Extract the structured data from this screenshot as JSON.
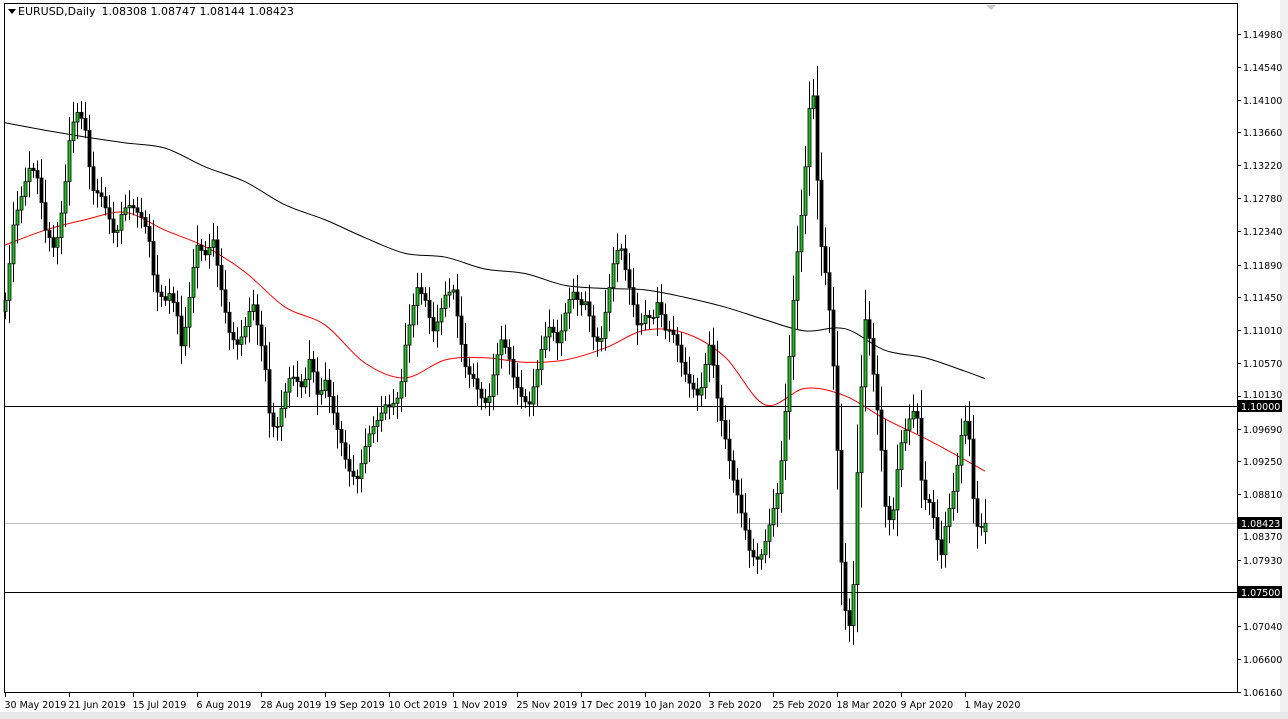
{
  "header": {
    "symbol": "EURUSD,Daily",
    "ohlc": "1.08308 1.08747 1.08144 1.08423"
  },
  "colors": {
    "bull_body": "#22c022",
    "bear_body": "#000000",
    "ma_fast": "#ff0000",
    "ma_slow": "#000000",
    "level_line": "#000000",
    "bid_line": "#c0c0c0",
    "label_bg": "#000000",
    "label_text": "#ffffff"
  },
  "chart_data": {
    "type": "candlestick",
    "symbol": "EURUSD",
    "timeframe": "Daily",
    "last_bar": {
      "open": 1.08308,
      "high": 1.08747,
      "low": 1.08144,
      "close": 1.08423
    },
    "ylim": [
      1.0616,
      1.1498
    ],
    "y_ticks": [
      "1.14980",
      "1.14540",
      "1.14100",
      "1.13660",
      "1.13220",
      "1.12780",
      "1.12340",
      "1.11890",
      "1.11450",
      "1.11010",
      "1.10570",
      "1.10130",
      "1.09690",
      "1.09250",
      "1.08810",
      "1.08370",
      "1.07930",
      "1.07040",
      "1.06600",
      "1.06160"
    ],
    "x_ticks": [
      "30 May 2019",
      "21 Jun 2019",
      "15 Jul 2019",
      "6 Aug 2019",
      "28 Aug 2019",
      "19 Sep 2019",
      "10 Oct 2019",
      "1 Nov 2019",
      "25 Nov 2019",
      "17 Dec 2019",
      "10 Jan 2020",
      "3 Feb 2020",
      "25 Feb 2020",
      "18 Mar 2020",
      "9 Apr 2020",
      "1 May 2020"
    ],
    "close": [
      1.1141,
      1.119,
      1.1242,
      1.1262,
      1.128,
      1.13,
      1.1318,
      1.1315,
      1.1305,
      1.1272,
      1.1235,
      1.1225,
      1.1212,
      1.1225,
      1.1258,
      1.13,
      1.1355,
      1.138,
      1.1393,
      1.1385,
      1.1369,
      1.132,
      1.1288,
      1.1285,
      1.128,
      1.1265,
      1.125,
      1.1232,
      1.1235,
      1.1256,
      1.1265,
      1.1268,
      1.1265,
      1.1259,
      1.1252,
      1.124,
      1.122,
      1.1175,
      1.1152,
      1.1146,
      1.1141,
      1.115,
      1.1138,
      1.112,
      1.108,
      1.1105,
      1.1145,
      1.1185,
      1.1215,
      1.1208,
      1.1202,
      1.1212,
      1.1222,
      1.1188,
      1.1155,
      1.1125,
      1.1098,
      1.1088,
      1.1082,
      1.1092,
      1.1106,
      1.1126,
      1.1135,
      1.1108,
      1.108,
      1.1048,
      1.099,
      1.0972,
      1.0972,
      1.0996,
      1.1018,
      1.1036,
      1.1038,
      1.1032,
      1.1025,
      1.1035,
      1.1062,
      1.1045,
      1.1015,
      1.102,
      1.1034,
      1.1012,
      1.099,
      1.0968,
      1.095,
      1.0928,
      1.0912,
      1.0905,
      1.0902,
      1.0922,
      1.0945,
      1.0962,
      1.0972,
      1.098,
      1.099,
      1.1001,
      1.0998,
      1.1003,
      1.101,
      1.1032,
      1.1081,
      1.1108,
      1.1134,
      1.1158,
      1.115,
      1.1141,
      1.1118,
      1.11,
      1.1112,
      1.113,
      1.1148,
      1.1152,
      1.1155,
      1.112,
      1.1082,
      1.1052,
      1.1042,
      1.1036,
      1.1022,
      1.101,
      1.1004,
      1.1012,
      1.1041,
      1.1068,
      1.1088,
      1.1078,
      1.1062,
      1.1038,
      1.1024,
      1.1012,
      1.1005,
      1.1002,
      1.1025,
      1.1048,
      1.1075,
      1.1092,
      1.1105,
      1.1098,
      1.1084,
      1.11,
      1.1124,
      1.1142,
      1.1152,
      1.1142,
      1.1135,
      1.1139,
      1.112,
      1.1092,
      1.1086,
      1.109,
      1.1125,
      1.1158,
      1.119,
      1.1208,
      1.121,
      1.1182,
      1.1158,
      1.1135,
      1.1108,
      1.111,
      1.1121,
      1.1118,
      1.1118,
      1.1138,
      1.1122,
      1.1101,
      1.1101,
      1.1095,
      1.1081,
      1.1058,
      1.1042,
      1.103,
      1.1022,
      1.1014,
      1.1024,
      1.1055,
      1.1081,
      1.1054,
      1.101,
      1.098,
      1.0955,
      1.0926,
      1.09,
      1.088,
      1.0856,
      1.0833,
      1.0806,
      1.0797,
      1.0794,
      1.08,
      1.0818,
      1.084,
      1.0862,
      1.0882,
      1.0926,
      1.0992,
      1.1066,
      1.1141,
      1.1206,
      1.1255,
      1.132,
      1.1398,
      1.1415,
      1.1302,
      1.1213,
      1.1178,
      1.1128,
      1.1053,
      1.094,
      1.079,
      1.0725,
      1.0705,
      1.076,
      1.091,
      1.1025,
      1.1115,
      1.109,
      1.1042,
      1.0994,
      1.094,
      1.0865,
      1.0847,
      1.086,
      1.0914,
      1.095,
      1.0967,
      1.0982,
      1.0992,
      1.0983,
      1.09,
      1.0874,
      1.087,
      1.085,
      1.082,
      1.08,
      1.0838,
      1.0862,
      1.0885,
      1.092,
      1.096,
      1.0979,
      1.0955,
      1.0875,
      1.0838,
      1.0838,
      1.0842
    ],
    "ma_fast": [
      1.1215,
      1.1235,
      1.1249,
      1.1259,
      1.1235,
      1.1213,
      1.1179,
      1.1132,
      1.1108,
      1.1057,
      1.1037,
      1.1061,
      1.1064,
      1.1058,
      1.1061,
      1.1077,
      1.1101,
      1.1097,
      1.1065,
      1.1001,
      1.1023,
      1.1013,
      1.0982,
      1.0956,
      1.0927,
      1.0912
    ],
    "ma_slow": [
      1.1379,
      1.1369,
      1.136,
      1.1352,
      1.1345,
      1.132,
      1.13,
      1.1269,
      1.1249,
      1.1225,
      1.1204,
      1.1199,
      1.1183,
      1.1177,
      1.1161,
      1.1157,
      1.1155,
      1.1145,
      1.1132,
      1.1115,
      1.11,
      1.1103,
      1.1074,
      1.1064,
      1.1046,
      1.1036
    ],
    "levels": [
      {
        "price": 1.1,
        "label": "1.10000"
      },
      {
        "price": 1.075,
        "label": "1.07500"
      }
    ],
    "bid": {
      "price": 1.08423,
      "label": "1.08423"
    },
    "grid": false
  }
}
